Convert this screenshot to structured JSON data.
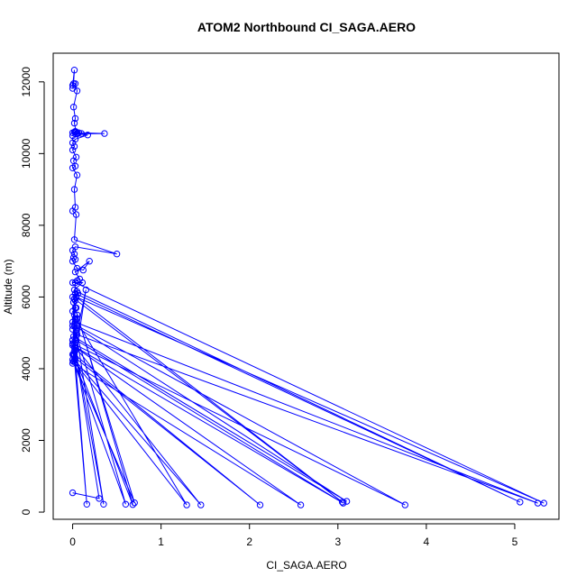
{
  "chart_data": {
    "type": "line",
    "title": "ATOM2 Northbound CI_SAGA.AERO",
    "xlabel": "CI_SAGA.AERO",
    "ylabel": "Altitude (m)",
    "xlim": [
      -0.22,
      5.5
    ],
    "ylim": [
      -200,
      12800
    ],
    "xticks": [
      0,
      1,
      2,
      3,
      4,
      5
    ],
    "xtick_labels": [
      "0",
      "1",
      "2",
      "3",
      "4",
      "5"
    ],
    "yticks": [
      0,
      2000,
      4000,
      6000,
      8000,
      10000,
      12000
    ],
    "ytick_labels": [
      "0",
      "2000",
      "4000",
      "6000",
      "8000",
      "10000",
      "12000"
    ],
    "grid": false,
    "color": "#0000ff",
    "marker": "open-circle",
    "series": [
      {
        "x": [
          0.0,
          0.02,
          0.01,
          0.0,
          0.03,
          0.05,
          0.01,
          0.03,
          0.02,
          0.04,
          0.0,
          0.03,
          0.02,
          0.0,
          0.05,
          0.03,
          0.1,
          0.07,
          0.36,
          0.05,
          0.17,
          0.03,
          0.0,
          0.02,
          0.0,
          0.04,
          0.01,
          0.03,
          0.0,
          0.05,
          0.02,
          0.03,
          0.0,
          0.04,
          0.02,
          0.5,
          0.03,
          0.0,
          0.02,
          0.01,
          0.03,
          0.0,
          0.05,
          0.12,
          0.19,
          0.03,
          0.08,
          0.05,
          0.0,
          0.11,
          0.02,
          0.06,
          0.0,
          0.03,
          0.01,
          0.04,
          0.0,
          0.02,
          0.05,
          0.0,
          0.03,
          5.06,
          0.05,
          0.0,
          0.02,
          3.05,
          0.04,
          5.33,
          0.03,
          0.0,
          0.02,
          3.1,
          0.01,
          0.04,
          0.0,
          0.05,
          5.26,
          0.03,
          0.0,
          3.76,
          0.05,
          0.0,
          3.06,
          0.04,
          0.02,
          0.0,
          0.15,
          0.03,
          2.12,
          0.02,
          0.05,
          0.7,
          0.01,
          0.03,
          2.58,
          0.0,
          0.02,
          0.35,
          0.04,
          0.0,
          1.29,
          0.03,
          0.01,
          0.6,
          0.04,
          0.02,
          1.45,
          0.0,
          0.03,
          0.68,
          0.01,
          0.02,
          0.16,
          0.0,
          0.03,
          0.3,
          0.0
        ],
        "y": [
          11900,
          12330,
          11950,
          11820,
          11950,
          11750,
          11300,
          10980,
          10850,
          10600,
          10500,
          10620,
          10600,
          10580,
          10570,
          10600,
          10560,
          10580,
          10560,
          10550,
          10520,
          10400,
          10300,
          10200,
          10100,
          9900,
          9800,
          9650,
          9600,
          9400,
          9000,
          8500,
          8400,
          8300,
          7600,
          7200,
          7400,
          7300,
          7200,
          7100,
          7050,
          7000,
          6800,
          6750,
          7000,
          6700,
          6500,
          6450,
          6400,
          6400,
          6200,
          6100,
          6000,
          5900,
          5850,
          5700,
          5600,
          5500,
          5400,
          5300,
          6100,
          280,
          6150,
          5200,
          5950,
          280,
          6000,
          250,
          6400,
          5100,
          5200,
          300,
          4900,
          5050,
          4800,
          4950,
          250,
          5300,
          4700,
          200,
          5200,
          4650,
          250,
          4800,
          4500,
          4400,
          6200,
          4300,
          200,
          4400,
          5500,
          260,
          4200,
          4600,
          200,
          4150,
          4700,
          220,
          5000,
          4250,
          200,
          5400,
          4200,
          220,
          5000,
          4250,
          200,
          4700,
          5700,
          210,
          4400,
          4600,
          220,
          4800,
          4500,
          380,
          540
        ]
      }
    ]
  }
}
